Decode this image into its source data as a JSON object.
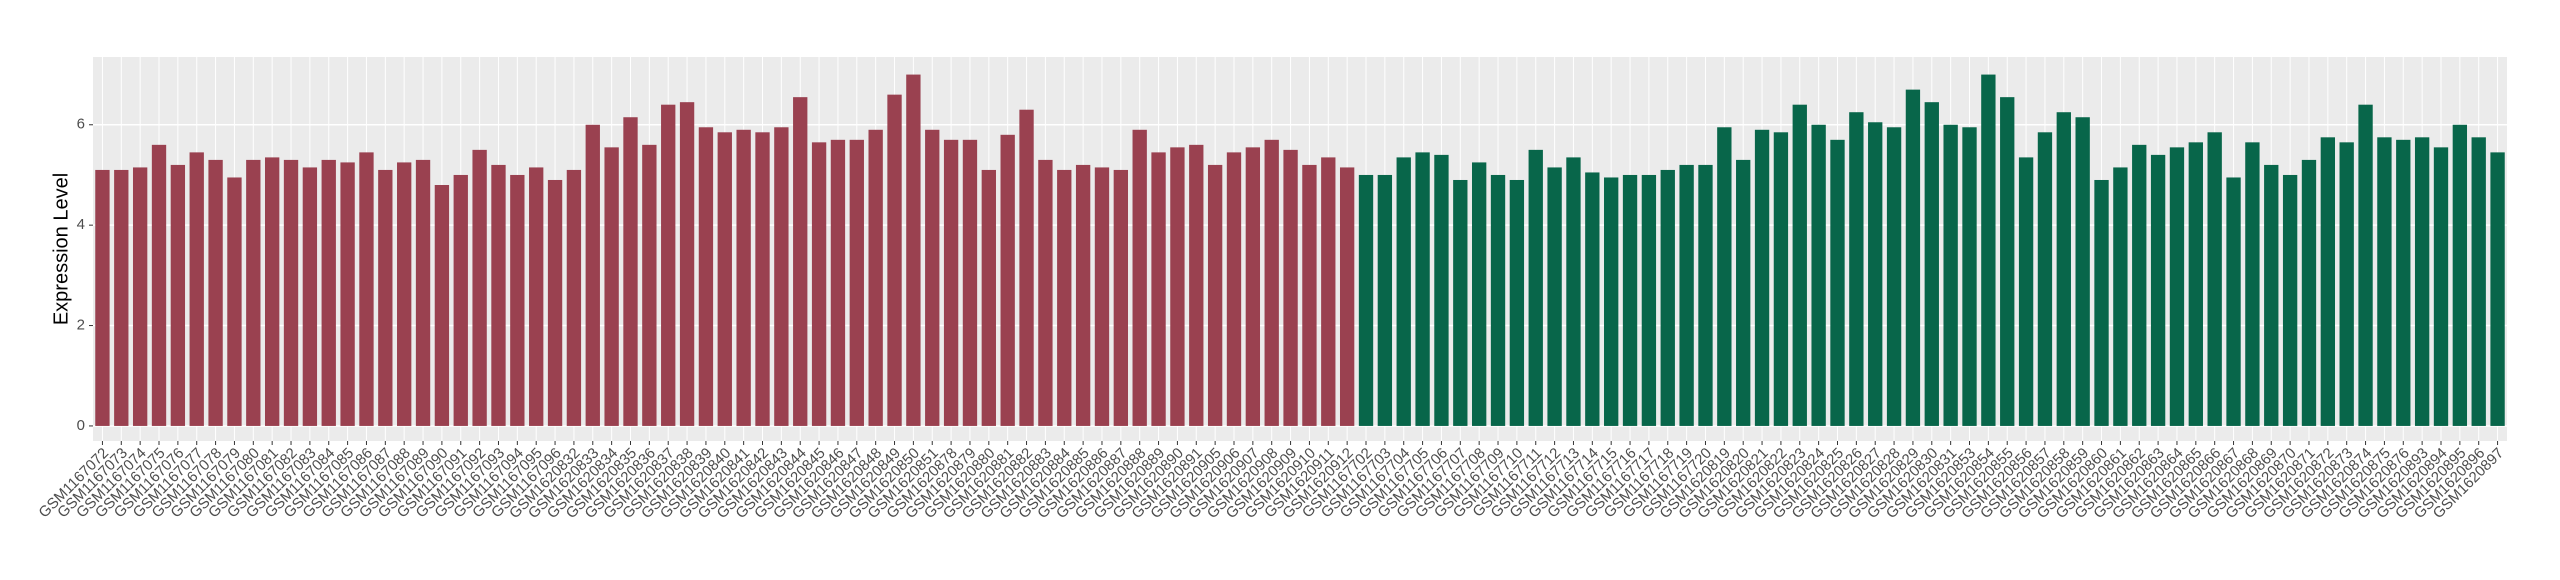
{
  "chart_data": {
    "type": "bar",
    "ylabel": "Expression Level",
    "ylim": [
      -0.3,
      7.35
    ],
    "yticks": [
      0,
      2,
      4,
      6
    ],
    "grid": true,
    "series": [
      {
        "color": "#9a4150",
        "categories": [
          "GSM1167072",
          "GSM1167073",
          "GSM1167074",
          "GSM1167075",
          "GSM1167076",
          "GSM1167077",
          "GSM1167078",
          "GSM1167079",
          "GSM1167080",
          "GSM1167081",
          "GSM1167082",
          "GSM1167083",
          "GSM1167084",
          "GSM1167085",
          "GSM1167086",
          "GSM1167087",
          "GSM1167088",
          "GSM1167089",
          "GSM1167090",
          "GSM1167091",
          "GSM1167092",
          "GSM1167093",
          "GSM1167094",
          "GSM1167095",
          "GSM1167096",
          "GSM1620832",
          "GSM1620833",
          "GSM1620834",
          "GSM1620835",
          "GSM1620836",
          "GSM1620837",
          "GSM1620838",
          "GSM1620839",
          "GSM1620840",
          "GSM1620841",
          "GSM1620842",
          "GSM1620843",
          "GSM1620844",
          "GSM1620845",
          "GSM1620846",
          "GSM1620847",
          "GSM1620848",
          "GSM1620849",
          "GSM1620850",
          "GSM1620851",
          "GSM1620878",
          "GSM1620879",
          "GSM1620880",
          "GSM1620881",
          "GSM1620882",
          "GSM1620883",
          "GSM1620884",
          "GSM1620885",
          "GSM1620886",
          "GSM1620887",
          "GSM1620888",
          "GSM1620889",
          "GSM1620890",
          "GSM1620891",
          "GSM1620905",
          "GSM1620906",
          "GSM1620907",
          "GSM1620908",
          "GSM1620909",
          "GSM1620910",
          "GSM1620911",
          "GSM1620912"
        ],
        "values": [
          5.1,
          5.1,
          5.15,
          5.6,
          5.2,
          5.45,
          5.3,
          4.95,
          5.3,
          5.35,
          5.3,
          5.15,
          5.3,
          5.25,
          5.45,
          5.1,
          5.25,
          5.3,
          4.8,
          5.0,
          5.5,
          5.2,
          5.0,
          5.15,
          4.9,
          5.1,
          6.0,
          5.55,
          6.15,
          5.6,
          6.4,
          6.45,
          5.95,
          5.85,
          5.9,
          5.85,
          5.95,
          6.55,
          5.65,
          5.7,
          5.7,
          5.9,
          6.6,
          7.0,
          5.9,
          5.7,
          5.7,
          5.1,
          5.8,
          6.3,
          5.3,
          5.1,
          5.2,
          5.15,
          5.1,
          5.9,
          5.45,
          5.55,
          5.6,
          5.2,
          5.45,
          5.55,
          5.7,
          5.5,
          5.2,
          5.35,
          5.15
        ]
      },
      {
        "color": "#08664a",
        "categories": [
          "GSM1167702",
          "GSM1167703",
          "GSM1167704",
          "GSM1167705",
          "GSM1167706",
          "GSM1167707",
          "GSM1167708",
          "GSM1167709",
          "GSM1167710",
          "GSM1167711",
          "GSM1167712",
          "GSM1167713",
          "GSM1167714",
          "GSM1167715",
          "GSM1167716",
          "GSM1167717",
          "GSM1167718",
          "GSM1167719",
          "GSM1167720",
          "GSM1620819",
          "GSM1620820",
          "GSM1620821",
          "GSM1620822",
          "GSM1620823",
          "GSM1620824",
          "GSM1620825",
          "GSM1620826",
          "GSM1620827",
          "GSM1620828",
          "GSM1620829",
          "GSM1620830",
          "GSM1620831",
          "GSM1620853",
          "GSM1620854",
          "GSM1620855",
          "GSM1620856",
          "GSM1620857",
          "GSM1620858",
          "GSM1620859",
          "GSM1620860",
          "GSM1620861",
          "GSM1620862",
          "GSM1620863",
          "GSM1620864",
          "GSM1620865",
          "GSM1620866",
          "GSM1620867",
          "GSM1620868",
          "GSM1620869",
          "GSM1620870",
          "GSM1620871",
          "GSM1620872",
          "GSM1620873",
          "GSM1620874",
          "GSM1620875",
          "GSM1620876",
          "GSM1620893",
          "GSM1620894",
          "GSM1620895",
          "GSM1620896",
          "GSM1620897"
        ],
        "values": [
          5.0,
          5.0,
          5.35,
          5.45,
          5.4,
          4.9,
          5.25,
          5.0,
          4.9,
          5.5,
          5.15,
          5.35,
          5.05,
          4.95,
          5.0,
          5.0,
          5.1,
          5.2,
          5.2,
          5.95,
          5.3,
          5.9,
          5.85,
          6.4,
          6.0,
          5.7,
          6.25,
          6.05,
          5.95,
          6.7,
          6.45,
          6.0,
          5.95,
          7.0,
          6.55,
          5.35,
          5.85,
          6.25,
          6.15,
          4.9,
          5.15,
          5.6,
          5.4,
          5.55,
          5.65,
          5.85,
          4.95,
          5.65,
          5.2,
          5.0,
          5.3,
          5.75,
          5.65,
          6.4,
          5.75,
          5.7,
          5.75,
          5.55,
          6.0,
          5.75,
          5.45
        ]
      }
    ]
  }
}
